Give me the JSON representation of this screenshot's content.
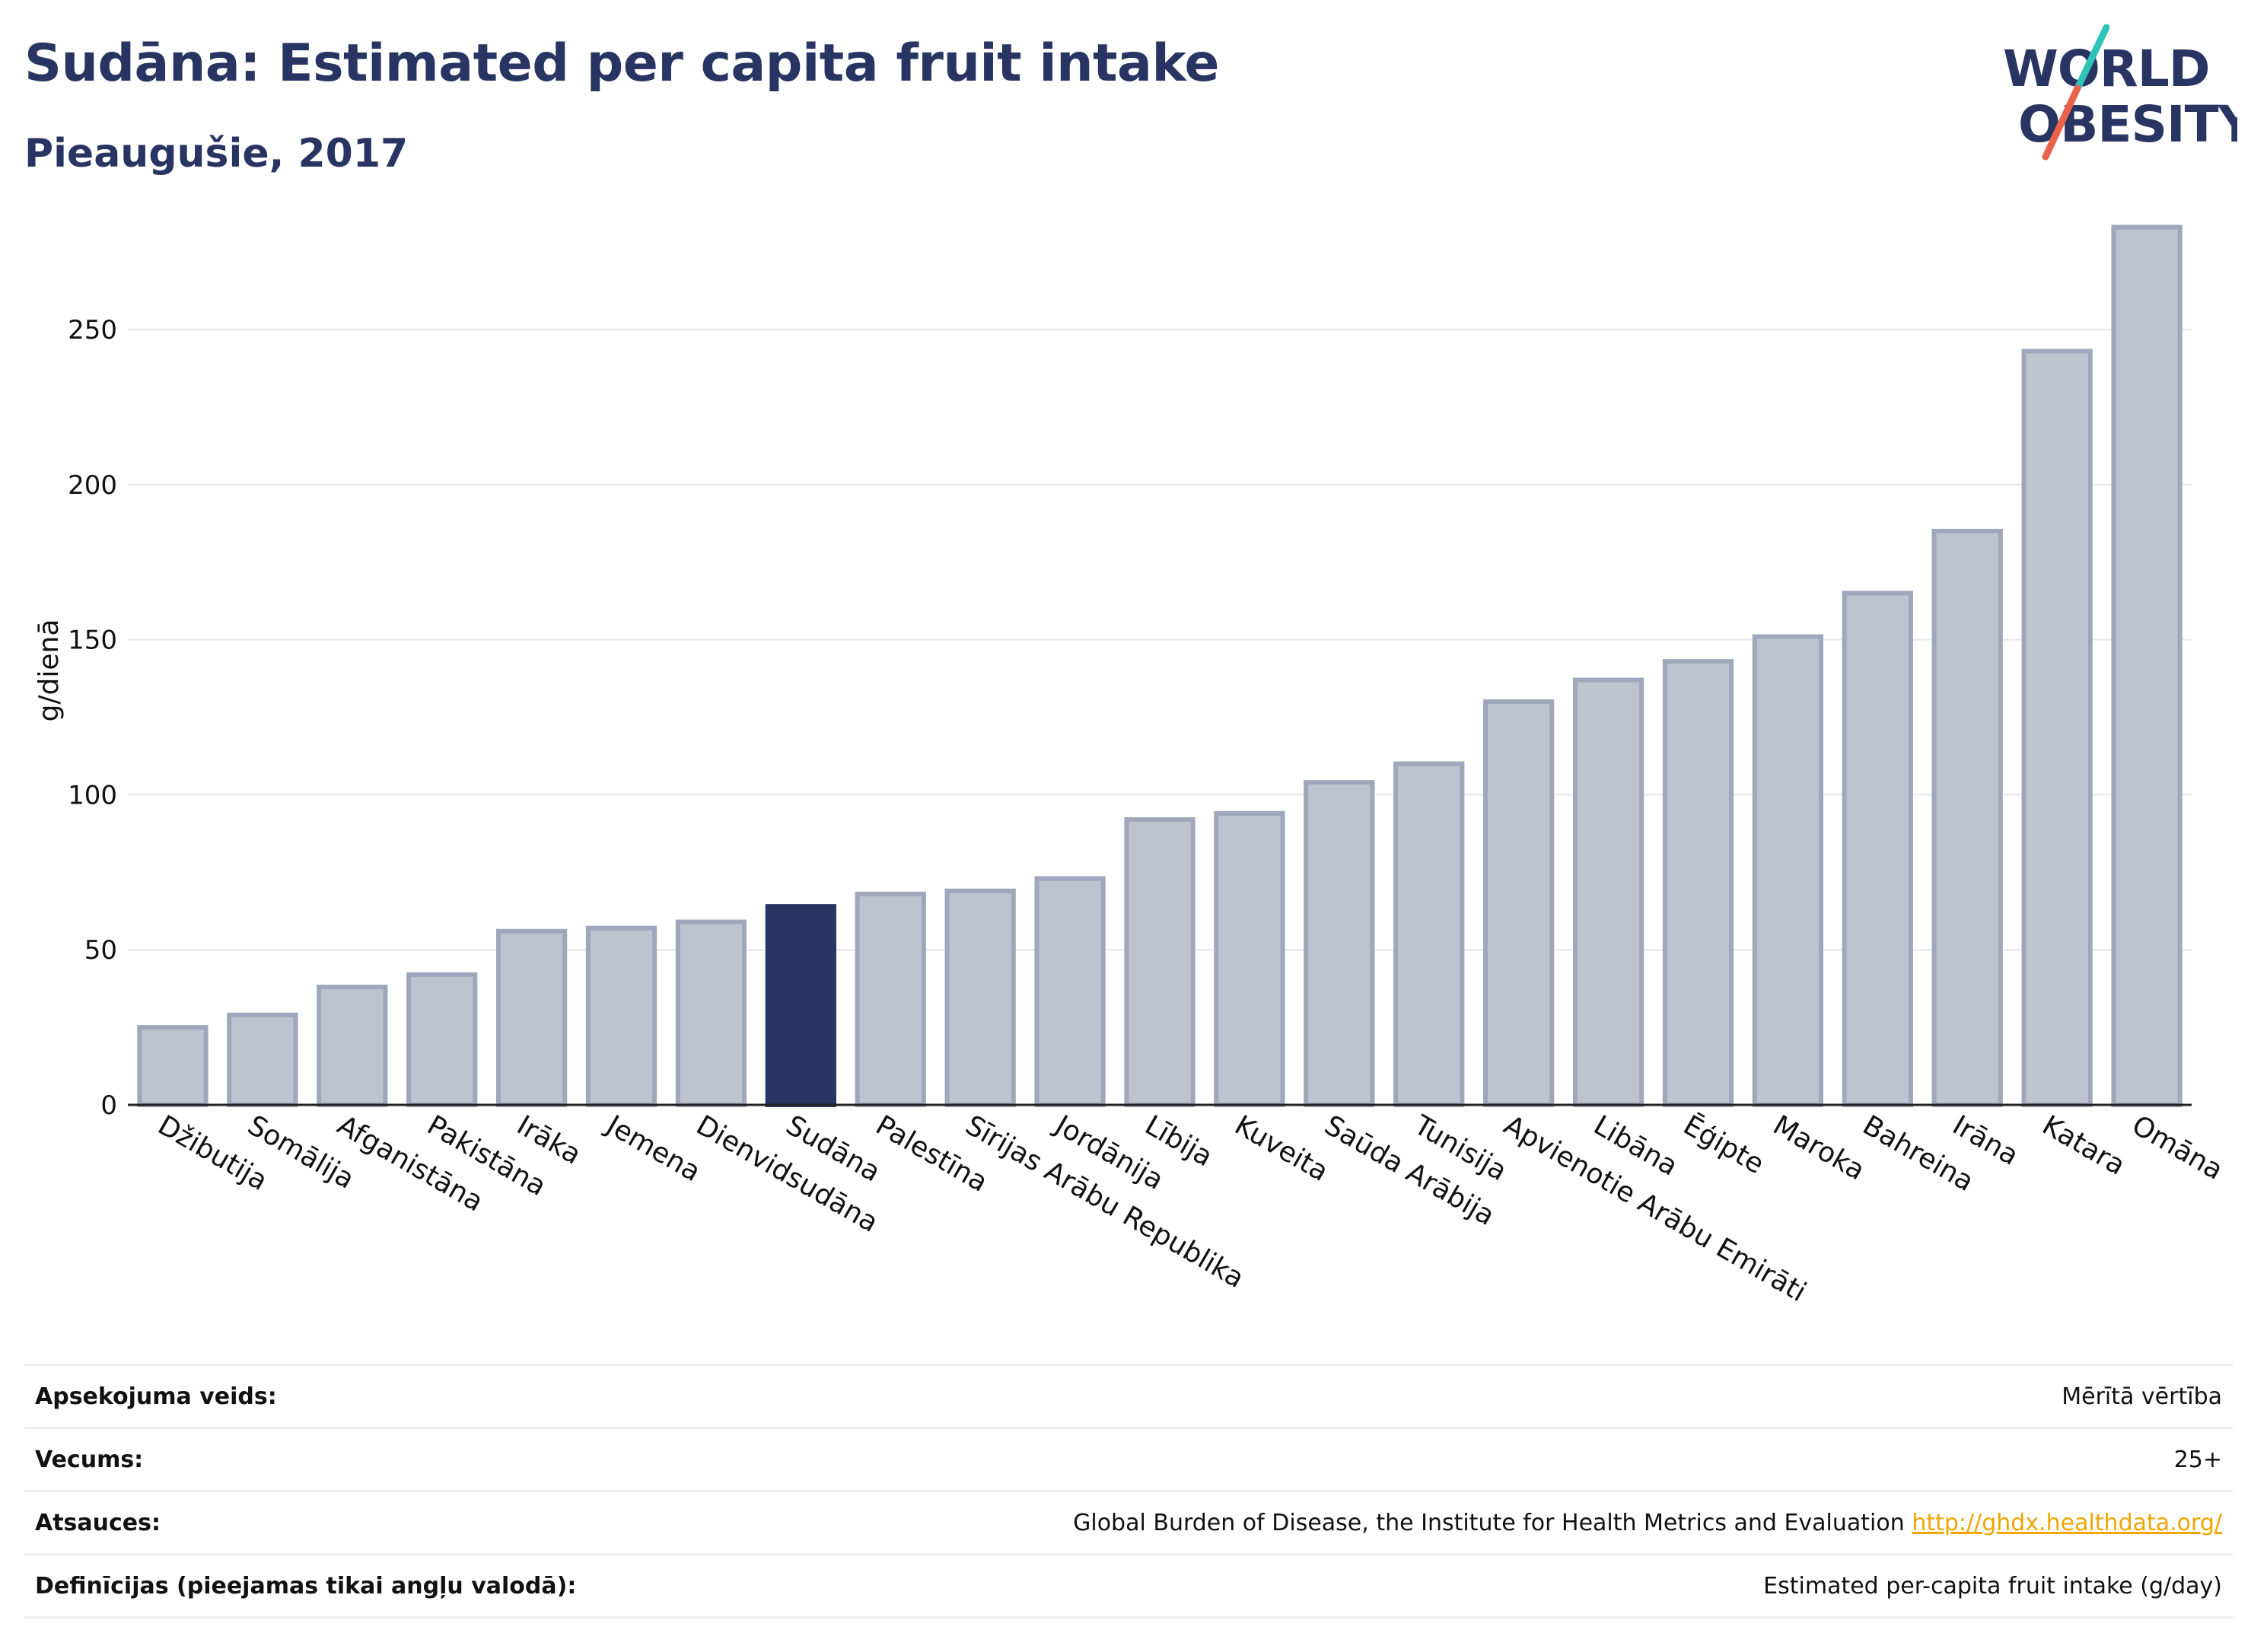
{
  "header": {
    "title": "Sudāna: Estimated per capita fruit intake",
    "subtitle": "Pieaugušie, 2017"
  },
  "logo": {
    "line1": "WORLD",
    "line2": "OBESITY",
    "text_color": "#283462",
    "slash_colors": [
      "#2ec4b6",
      "#e8634a"
    ]
  },
  "chart_data": {
    "type": "bar",
    "ylabel": "g/dienā",
    "ylim": [
      0,
      290
    ],
    "yticks": [
      0,
      50,
      100,
      150,
      200,
      250
    ],
    "grid": true,
    "highlight": "Sudāna",
    "colors": {
      "bar": "#bfc3d0",
      "bar_border": "#a0a6bb",
      "highlight": "#283462",
      "grid": "#e6e6ec"
    },
    "categories": [
      "Džibutija",
      "Somālija",
      "Afganistāna",
      "Pakistāna",
      "Irāka",
      "Jemena",
      "Dienvidsudāna",
      "Sudāna",
      "Palestīna",
      "Sīrijas Arābu Republika",
      "Jordānija",
      "Lībija",
      "Kuveita",
      "Saūda Arābija",
      "Tunisija",
      "Apvienotie Arābu Emirāti",
      "Libāna",
      "Ēģipte",
      "Maroka",
      "Bahreina",
      "Irāna",
      "Katara",
      "Omāna"
    ],
    "values": [
      25,
      29,
      38,
      42,
      56,
      57,
      59,
      64,
      68,
      69,
      73,
      92,
      94,
      104,
      110,
      130,
      137,
      143,
      151,
      165,
      185,
      243,
      283
    ]
  },
  "info": {
    "rows": [
      {
        "label": "Apsekojuma veids:",
        "value": "Mērītā vērtība"
      },
      {
        "label": "Vecums:",
        "value": "25+"
      },
      {
        "label": "Atsauces:",
        "value": "Global Burden of Disease, the Institute for Health Metrics and Evaluation",
        "link": "http://ghdx.healthdata.org/"
      },
      {
        "label": "Definīcijas (pieejamas tikai angļu valodā):",
        "value": "Estimated per-capita fruit intake (g/day)"
      }
    ]
  }
}
